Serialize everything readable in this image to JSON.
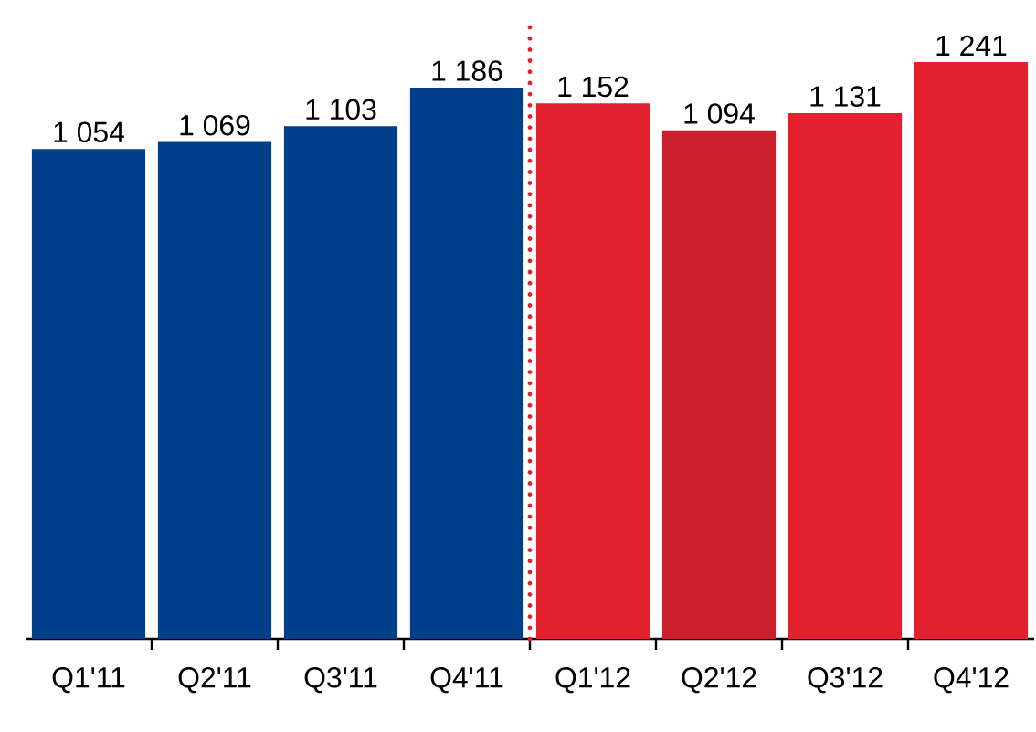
{
  "chart_data": {
    "type": "bar",
    "categories": [
      "Q1'11",
      "Q2'11",
      "Q3'11",
      "Q4'11",
      "Q1'12",
      "Q2'12",
      "Q3'12",
      "Q4'12"
    ],
    "values": [
      1054,
      1069,
      1103,
      1186,
      1152,
      1094,
      1131,
      1241
    ],
    "value_labels": [
      "1 054",
      "1 069",
      "1 103",
      "1 186",
      "1 152",
      "1 094",
      "1 131",
      "1 241"
    ],
    "colors": [
      "#003f8a",
      "#003f8a",
      "#003f8a",
      "#003f8a",
      "#e3202e",
      "#cc1f2e",
      "#e3202e",
      "#e3202e"
    ],
    "tick_labels": "x"
  }
}
